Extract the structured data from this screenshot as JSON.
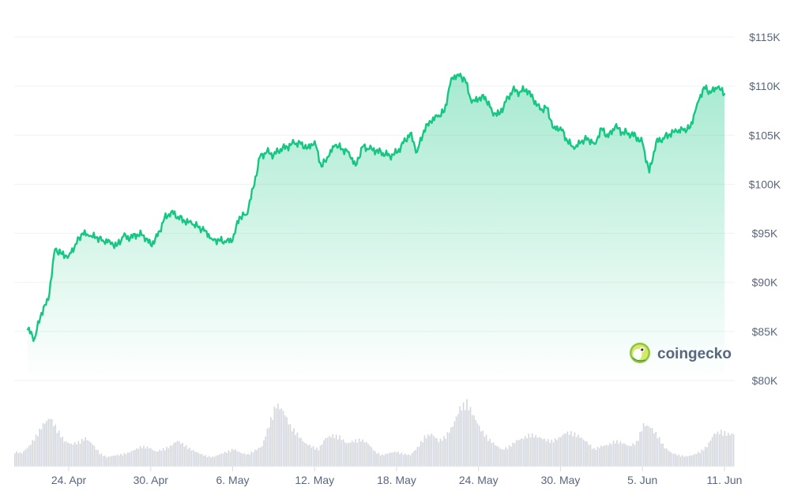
{
  "chart_data": {
    "type": "area",
    "title": "",
    "xlabel": "",
    "ylabel": "",
    "ylim": [
      80000,
      115000
    ],
    "y_ticks": [
      {
        "value": 115000,
        "label": "$115K"
      },
      {
        "value": 110000,
        "label": "$110K"
      },
      {
        "value": 105000,
        "label": "$105K"
      },
      {
        "value": 100000,
        "label": "$100K"
      },
      {
        "value": 95000,
        "label": "$95K"
      },
      {
        "value": 90000,
        "label": "$90K"
      },
      {
        "value": 85000,
        "label": "$85K"
      },
      {
        "value": 80000,
        "label": "$80K"
      }
    ],
    "x_ticks": [
      {
        "date": "2025-04-24",
        "label": "24. Apr"
      },
      {
        "date": "2025-04-30",
        "label": "30. Apr"
      },
      {
        "date": "2025-05-06",
        "label": "6. May"
      },
      {
        "date": "2025-05-12",
        "label": "12. May"
      },
      {
        "date": "2025-05-18",
        "label": "18. May"
      },
      {
        "date": "2025-05-24",
        "label": "24. May"
      },
      {
        "date": "2025-05-30",
        "label": "30. May"
      },
      {
        "date": "2025-06-05",
        "label": "5. Jun"
      },
      {
        "date": "2025-06-11",
        "label": "11. Jun"
      }
    ],
    "grid": true,
    "legend": "none",
    "series": [
      {
        "kind": "price",
        "color": "#16c784",
        "points": [
          [
            "2025-04-21 00:00",
            85200
          ],
          [
            "2025-04-21 12:00",
            84300
          ],
          [
            "2025-04-22 00:00",
            86900
          ],
          [
            "2025-04-22 12:00",
            88200
          ],
          [
            "2025-04-23 00:00",
            93400
          ],
          [
            "2025-04-23 12:00",
            92900
          ],
          [
            "2025-04-24 00:00",
            92700
          ],
          [
            "2025-04-24 12:00",
            93900
          ],
          [
            "2025-04-25 00:00",
            95000
          ],
          [
            "2025-04-25 12:00",
            94700
          ],
          [
            "2025-04-26 00:00",
            94600
          ],
          [
            "2025-04-26 12:00",
            94300
          ],
          [
            "2025-04-27 00:00",
            94200
          ],
          [
            "2025-04-27 12:00",
            93700
          ],
          [
            "2025-04-28 00:00",
            94700
          ],
          [
            "2025-04-28 12:00",
            94500
          ],
          [
            "2025-04-29 00:00",
            94900
          ],
          [
            "2025-04-29 12:00",
            94800
          ],
          [
            "2025-04-30 00:00",
            93800
          ],
          [
            "2025-04-30 12:00",
            94700
          ],
          [
            "2025-05-01 00:00",
            96500
          ],
          [
            "2025-05-01 12:00",
            97200
          ],
          [
            "2025-05-02 00:00",
            96700
          ],
          [
            "2025-05-02 12:00",
            96200
          ],
          [
            "2025-05-03 00:00",
            96000
          ],
          [
            "2025-05-03 12:00",
            95600
          ],
          [
            "2025-05-04 00:00",
            95300
          ],
          [
            "2025-05-04 12:00",
            94400
          ],
          [
            "2025-05-05 00:00",
            94300
          ],
          [
            "2025-05-05 12:00",
            94100
          ],
          [
            "2025-05-06 00:00",
            94300
          ],
          [
            "2025-05-06 12:00",
            96700
          ],
          [
            "2025-05-07 00:00",
            96900
          ],
          [
            "2025-05-07 12:00",
            99600
          ],
          [
            "2025-05-08 00:00",
            102800
          ],
          [
            "2025-05-08 12:00",
            103300
          ],
          [
            "2025-05-09 00:00",
            103000
          ],
          [
            "2025-05-09 12:00",
            103600
          ],
          [
            "2025-05-10 00:00",
            103800
          ],
          [
            "2025-05-10 12:00",
            104200
          ],
          [
            "2025-05-11 00:00",
            104100
          ],
          [
            "2025-05-11 12:00",
            103700
          ],
          [
            "2025-05-12 00:00",
            104400
          ],
          [
            "2025-05-12 12:00",
            101800
          ],
          [
            "2025-05-13 00:00",
            102800
          ],
          [
            "2025-05-13 12:00",
            104000
          ],
          [
            "2025-05-14 00:00",
            103600
          ],
          [
            "2025-05-14 12:00",
            103300
          ],
          [
            "2025-05-15 00:00",
            101900
          ],
          [
            "2025-05-15 12:00",
            103800
          ],
          [
            "2025-05-16 00:00",
            103600
          ],
          [
            "2025-05-16 12:00",
            103400
          ],
          [
            "2025-05-17 00:00",
            103200
          ],
          [
            "2025-05-17 12:00",
            102900
          ],
          [
            "2025-05-18 00:00",
            103200
          ],
          [
            "2025-05-18 12:00",
            104200
          ],
          [
            "2025-05-19 00:00",
            105200
          ],
          [
            "2025-05-19 12:00",
            103300
          ],
          [
            "2025-05-20 00:00",
            105500
          ],
          [
            "2025-05-20 12:00",
            106400
          ],
          [
            "2025-05-21 00:00",
            106900
          ],
          [
            "2025-05-21 12:00",
            107400
          ],
          [
            "2025-05-22 00:00",
            110800
          ],
          [
            "2025-05-22 12:00",
            111200
          ],
          [
            "2025-05-23 00:00",
            110700
          ],
          [
            "2025-05-23 12:00",
            108300
          ],
          [
            "2025-05-24 00:00",
            108700
          ],
          [
            "2025-05-24 12:00",
            108900
          ],
          [
            "2025-05-25 00:00",
            107400
          ],
          [
            "2025-05-25 12:00",
            107100
          ],
          [
            "2025-05-26 00:00",
            108400
          ],
          [
            "2025-05-26 12:00",
            109600
          ],
          [
            "2025-05-27 00:00",
            109400
          ],
          [
            "2025-05-27 12:00",
            109700
          ],
          [
            "2025-05-28 00:00",
            108700
          ],
          [
            "2025-05-28 12:00",
            107600
          ],
          [
            "2025-05-29 00:00",
            107800
          ],
          [
            "2025-05-29 12:00",
            105700
          ],
          [
            "2025-05-30 00:00",
            105800
          ],
          [
            "2025-05-30 12:00",
            104400
          ],
          [
            "2025-05-31 00:00",
            103600
          ],
          [
            "2025-05-31 12:00",
            104300
          ],
          [
            "2025-06-01 00:00",
            104700
          ],
          [
            "2025-06-01 12:00",
            104100
          ],
          [
            "2025-06-02 00:00",
            105700
          ],
          [
            "2025-06-02 12:00",
            104800
          ],
          [
            "2025-06-03 00:00",
            105900
          ],
          [
            "2025-06-03 12:00",
            105300
          ],
          [
            "2025-06-04 00:00",
            105200
          ],
          [
            "2025-06-04 12:00",
            104900
          ],
          [
            "2025-06-05 00:00",
            104200
          ],
          [
            "2025-06-05 12:00",
            101200
          ],
          [
            "2025-06-06 00:00",
            104300
          ],
          [
            "2025-06-06 12:00",
            104700
          ],
          [
            "2025-06-07 00:00",
            105100
          ],
          [
            "2025-06-07 12:00",
            105400
          ],
          [
            "2025-06-08 00:00",
            105500
          ],
          [
            "2025-06-08 12:00",
            105800
          ],
          [
            "2025-06-09 00:00",
            108200
          ],
          [
            "2025-06-09 12:00",
            109900
          ],
          [
            "2025-06-10 00:00",
            109300
          ],
          [
            "2025-06-10 12:00",
            109900
          ],
          [
            "2025-06-11 00:00",
            109200
          ]
        ]
      },
      {
        "kind": "volume",
        "color": "#d4d8de",
        "relative_values": [
          0.22,
          0.2,
          0.3,
          0.45,
          0.62,
          0.72,
          0.55,
          0.38,
          0.33,
          0.36,
          0.42,
          0.33,
          0.2,
          0.14,
          0.16,
          0.18,
          0.2,
          0.25,
          0.3,
          0.28,
          0.22,
          0.26,
          0.3,
          0.38,
          0.32,
          0.25,
          0.2,
          0.16,
          0.14,
          0.18,
          0.22,
          0.26,
          0.2,
          0.18,
          0.24,
          0.3,
          0.62,
          0.92,
          0.82,
          0.6,
          0.48,
          0.35,
          0.3,
          0.26,
          0.42,
          0.46,
          0.44,
          0.34,
          0.38,
          0.4,
          0.34,
          0.22,
          0.17,
          0.2,
          0.22,
          0.19,
          0.17,
          0.28,
          0.44,
          0.48,
          0.38,
          0.45,
          0.6,
          0.86,
          0.95,
          0.74,
          0.54,
          0.42,
          0.32,
          0.25,
          0.3,
          0.38,
          0.42,
          0.48,
          0.44,
          0.4,
          0.38,
          0.42,
          0.5,
          0.5,
          0.44,
          0.36,
          0.26,
          0.3,
          0.32,
          0.38,
          0.35,
          0.3,
          0.36,
          0.62,
          0.58,
          0.46,
          0.28,
          0.2,
          0.17,
          0.15,
          0.17,
          0.22,
          0.3,
          0.48,
          0.52,
          0.48
        ]
      }
    ]
  },
  "watermark": {
    "text": "coingecko",
    "icon": "gecko-logo-icon"
  }
}
